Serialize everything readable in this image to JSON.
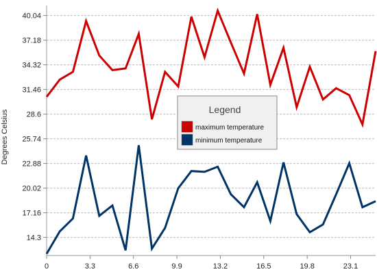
{
  "chart_data": {
    "type": "line",
    "title": "",
    "xlabel": "",
    "ylabel": "Degrees Celsius",
    "x": [
      0,
      1,
      2,
      3,
      4,
      5,
      6,
      7,
      8,
      9,
      10,
      11,
      12,
      13,
      14,
      15,
      16,
      17,
      18,
      19,
      20,
      21,
      22,
      23,
      24,
      25
    ],
    "x_ticks": [
      0,
      3.3,
      6.6,
      9.9,
      13.2,
      16.5,
      19.8,
      23.1
    ],
    "x_tick_labels": [
      "0",
      "3.3",
      "6.6",
      "9.9",
      "13.2",
      "16.5",
      "19.8",
      "23.1"
    ],
    "xlim": [
      0,
      25
    ],
    "y_ticks": [
      14.3,
      17.16,
      20.02,
      22.88,
      25.74,
      28.6,
      31.46,
      34.32,
      37.18,
      40.04
    ],
    "y_tick_labels": [
      "14.3",
      "17.16",
      "20.02",
      "22.88",
      "25.74",
      "28.6",
      "31.46",
      "34.32",
      "37.18",
      "40.04"
    ],
    "ylim": [
      12.2,
      41.2
    ],
    "grid": true,
    "legend": {
      "title": "Legend",
      "position": "center"
    },
    "series": [
      {
        "name": "maximum temperature",
        "color": "#cc0000",
        "values": [
          30.6,
          32.6,
          33.5,
          39.4,
          35.4,
          33.7,
          33.9,
          37.9,
          28.0,
          33.5,
          31.8,
          39.9,
          35.2,
          40.6,
          36.9,
          33.3,
          40.2,
          32.0,
          36.3,
          29.4,
          34.1,
          30.3,
          31.6,
          30.8,
          27.4,
          35.9
        ]
      },
      {
        "name": "minimum temperature",
        "color": "#003366",
        "values": [
          12.4,
          15.0,
          16.5,
          23.8,
          16.8,
          18.0,
          12.8,
          25.0,
          13.0,
          15.4,
          20.0,
          22.0,
          21.9,
          22.5,
          19.3,
          17.8,
          20.7,
          16.2,
          23.0,
          17.0,
          14.9,
          15.8,
          19.3,
          22.9,
          17.8,
          18.5
        ]
      }
    ]
  }
}
